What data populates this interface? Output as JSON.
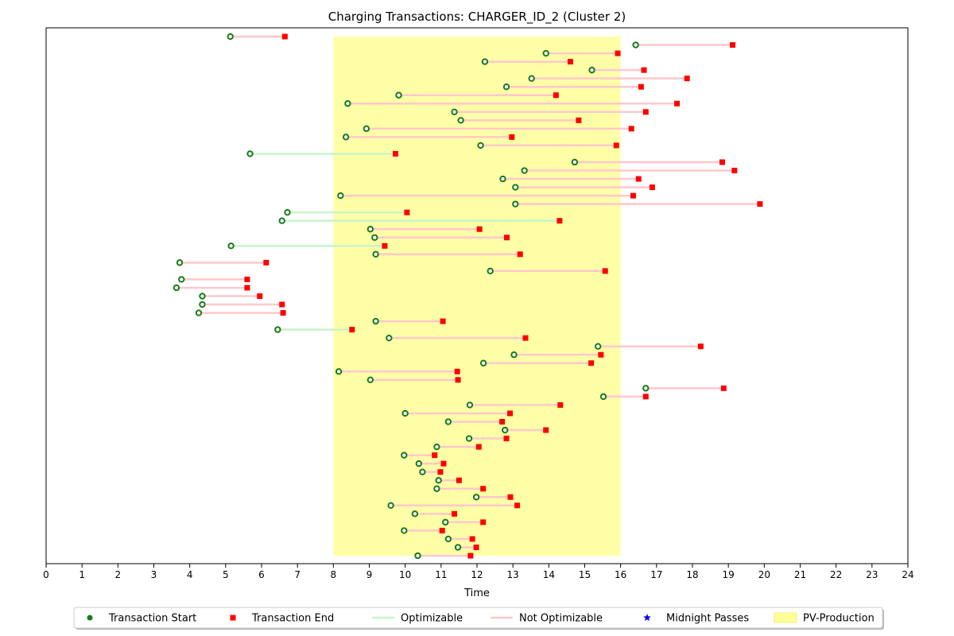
{
  "chart_data": {
    "type": "timeline",
    "title": "Charging Transactions: CHARGER_ID_2 (Cluster 2)",
    "xlabel": "Time",
    "xlim": [
      0,
      24
    ],
    "xticks": [
      0,
      1,
      2,
      3,
      4,
      5,
      6,
      7,
      8,
      9,
      10,
      11,
      12,
      13,
      14,
      15,
      16,
      17,
      18,
      19,
      20,
      21,
      22,
      23,
      24
    ],
    "pv_production": {
      "start": 8,
      "end": 16,
      "label": "PV-Production",
      "color": "#ffff99"
    },
    "colors": {
      "start_fill": "#1a7a1a",
      "end_fill": "#ff0000",
      "optimizable": "#c8f5c8",
      "not_optimizable": "#ffc8cc",
      "midnight": "#0000ff"
    },
    "legend": {
      "placement": "bottom-center",
      "entries": [
        {
          "label": "Transaction Start",
          "kind": "start"
        },
        {
          "label": "Transaction End",
          "kind": "end"
        },
        {
          "label": "Optimizable",
          "kind": "optimizable"
        },
        {
          "label": "Not Optimizable",
          "kind": "not_optimizable"
        },
        {
          "label": "Midnight Passes",
          "kind": "midnight"
        },
        {
          "label": "PV-Production",
          "kind": "pv"
        }
      ]
    },
    "transactions": [
      {
        "start": 5.13,
        "end": 6.65,
        "optimizable": false
      },
      {
        "start": 16.42,
        "end": 19.12,
        "optimizable": false
      },
      {
        "start": 13.92,
        "end": 15.92,
        "optimizable": false
      },
      {
        "start": 12.22,
        "end": 14.6,
        "optimizable": false
      },
      {
        "start": 15.2,
        "end": 16.65,
        "optimizable": false
      },
      {
        "start": 13.52,
        "end": 17.85,
        "optimizable": false
      },
      {
        "start": 12.82,
        "end": 16.57,
        "optimizable": false
      },
      {
        "start": 9.82,
        "end": 14.2,
        "optimizable": false
      },
      {
        "start": 8.4,
        "end": 17.57,
        "optimizable": false
      },
      {
        "start": 11.37,
        "end": 16.7,
        "optimizable": false
      },
      {
        "start": 11.55,
        "end": 14.83,
        "optimizable": false
      },
      {
        "start": 8.92,
        "end": 16.3,
        "optimizable": false
      },
      {
        "start": 8.35,
        "end": 12.97,
        "optimizable": false
      },
      {
        "start": 12.1,
        "end": 15.88,
        "optimizable": false
      },
      {
        "start": 5.68,
        "end": 9.73,
        "optimizable": true
      },
      {
        "start": 14.72,
        "end": 18.83,
        "optimizable": false
      },
      {
        "start": 13.32,
        "end": 19.17,
        "optimizable": false
      },
      {
        "start": 12.72,
        "end": 16.5,
        "optimizable": false
      },
      {
        "start": 13.07,
        "end": 16.88,
        "optimizable": false
      },
      {
        "start": 8.2,
        "end": 16.35,
        "optimizable": false
      },
      {
        "start": 13.07,
        "end": 19.88,
        "optimizable": false
      },
      {
        "start": 6.72,
        "end": 10.05,
        "optimizable": true
      },
      {
        "start": 6.57,
        "end": 14.3,
        "optimizable": true
      },
      {
        "start": 9.03,
        "end": 12.07,
        "optimizable": false
      },
      {
        "start": 9.15,
        "end": 12.83,
        "optimizable": false
      },
      {
        "start": 5.15,
        "end": 9.43,
        "optimizable": true
      },
      {
        "start": 9.18,
        "end": 13.2,
        "optimizable": false
      },
      {
        "start": 3.72,
        "end": 6.13,
        "optimizable": false
      },
      {
        "start": 12.37,
        "end": 15.57,
        "optimizable": false
      },
      {
        "start": 3.77,
        "end": 5.6,
        "optimizable": false
      },
      {
        "start": 3.63,
        "end": 5.6,
        "optimizable": false
      },
      {
        "start": 4.35,
        "end": 5.95,
        "optimizable": false
      },
      {
        "start": 4.35,
        "end": 6.57,
        "optimizable": false
      },
      {
        "start": 4.25,
        "end": 6.6,
        "optimizable": false
      },
      {
        "start": 9.18,
        "end": 11.05,
        "optimizable": false
      },
      {
        "start": 6.45,
        "end": 8.52,
        "optimizable": true
      },
      {
        "start": 9.55,
        "end": 13.35,
        "optimizable": false
      },
      {
        "start": 15.37,
        "end": 18.23,
        "optimizable": false
      },
      {
        "start": 13.03,
        "end": 15.45,
        "optimizable": false
      },
      {
        "start": 12.18,
        "end": 15.18,
        "optimizable": false
      },
      {
        "start": 8.15,
        "end": 11.45,
        "optimizable": false
      },
      {
        "start": 9.03,
        "end": 11.47,
        "optimizable": false
      },
      {
        "start": 16.7,
        "end": 18.87,
        "optimizable": false
      },
      {
        "start": 15.52,
        "end": 16.7,
        "optimizable": false
      },
      {
        "start": 11.8,
        "end": 14.32,
        "optimizable": false
      },
      {
        "start": 10.0,
        "end": 12.92,
        "optimizable": false
      },
      {
        "start": 11.2,
        "end": 12.7,
        "optimizable": false
      },
      {
        "start": 12.78,
        "end": 13.92,
        "optimizable": false
      },
      {
        "start": 11.78,
        "end": 12.82,
        "optimizable": false
      },
      {
        "start": 10.88,
        "end": 12.05,
        "optimizable": false
      },
      {
        "start": 9.97,
        "end": 10.82,
        "optimizable": false
      },
      {
        "start": 10.38,
        "end": 11.07,
        "optimizable": false
      },
      {
        "start": 10.48,
        "end": 10.98,
        "optimizable": false
      },
      {
        "start": 10.93,
        "end": 11.5,
        "optimizable": false
      },
      {
        "start": 10.88,
        "end": 12.17,
        "optimizable": false
      },
      {
        "start": 11.98,
        "end": 12.93,
        "optimizable": false
      },
      {
        "start": 9.6,
        "end": 13.12,
        "optimizable": false
      },
      {
        "start": 10.27,
        "end": 11.37,
        "optimizable": false
      },
      {
        "start": 11.12,
        "end": 12.17,
        "optimizable": false
      },
      {
        "start": 9.97,
        "end": 11.03,
        "optimizable": false
      },
      {
        "start": 11.2,
        "end": 11.87,
        "optimizable": false
      },
      {
        "start": 11.47,
        "end": 11.98,
        "optimizable": false
      },
      {
        "start": 10.35,
        "end": 11.82,
        "optimizable": false
      }
    ]
  }
}
